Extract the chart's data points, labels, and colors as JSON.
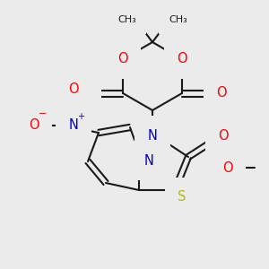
{
  "bg_color": "#ebebeb",
  "bond_color": "#1a1a1a",
  "bond_width": 1.5,
  "dbo": 0.014,
  "atom_colors": {
    "O": "#ff0000",
    "N": "#0000cd",
    "S": "#b8b800",
    "C": "#1a1a1a"
  },
  "fs": 10.5
}
